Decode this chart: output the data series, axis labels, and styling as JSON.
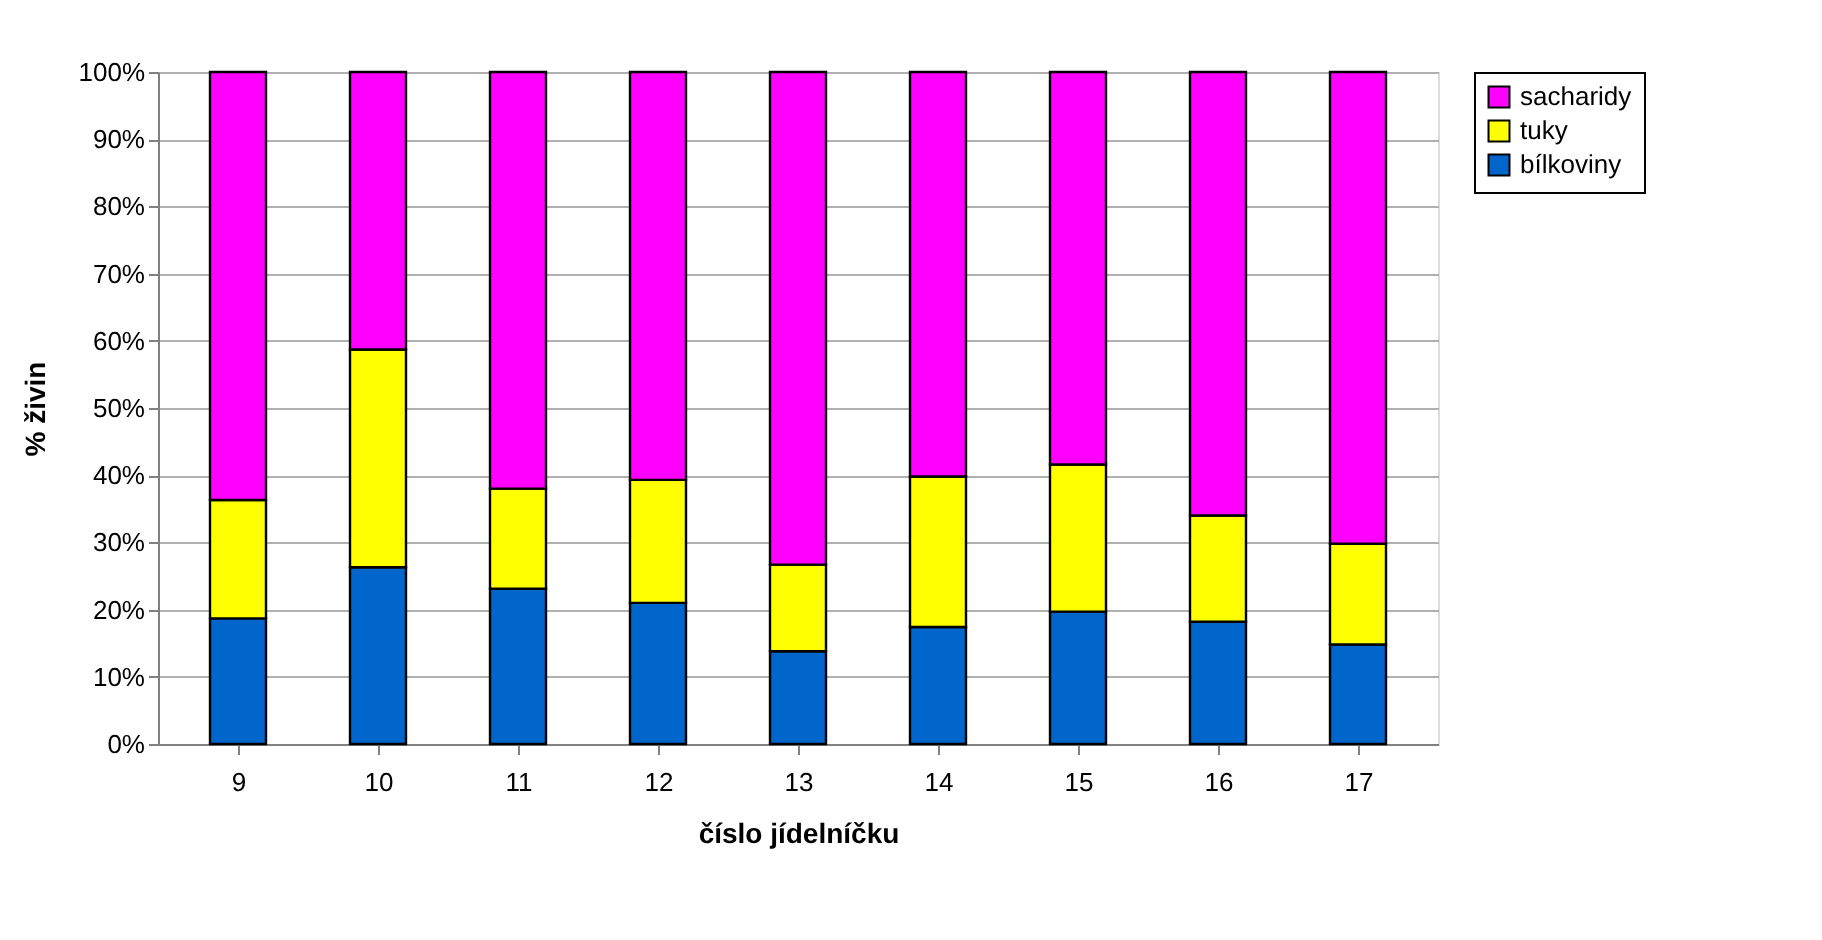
{
  "chart_data": {
    "type": "bar",
    "stacked": true,
    "xlabel": "číslo jídelníčku",
    "ylabel": "% živin",
    "categories": [
      "9",
      "10",
      "11",
      "12",
      "13",
      "14",
      "15",
      "16",
      "17"
    ],
    "series": [
      {
        "name": "bílkoviny",
        "color": "#0066cc",
        "values": [
          18.7,
          26.3,
          23.1,
          21.0,
          13.8,
          17.4,
          19.7,
          18.2,
          14.8
        ]
      },
      {
        "name": "tuky",
        "color": "#ffff00",
        "values": [
          17.6,
          32.4,
          14.9,
          18.3,
          12.9,
          22.4,
          21.9,
          15.8,
          15.0
        ]
      },
      {
        "name": "sacharidy",
        "color": "#ff00ff",
        "values": [
          63.7,
          41.3,
          62.0,
          60.7,
          73.3,
          60.2,
          58.4,
          66.0,
          70.2
        ]
      }
    ],
    "ylim": [
      0,
      100
    ],
    "yticks": [
      {
        "value": 0,
        "label": "0%"
      },
      {
        "value": 10,
        "label": "10%"
      },
      {
        "value": 20,
        "label": "20%"
      },
      {
        "value": 30,
        "label": "30%"
      },
      {
        "value": 40,
        "label": "40%"
      },
      {
        "value": 50,
        "label": "50%"
      },
      {
        "value": 60,
        "label": "60%"
      },
      {
        "value": 70,
        "label": "70%"
      },
      {
        "value": 80,
        "label": "80%"
      },
      {
        "value": 90,
        "label": "90%"
      },
      {
        "value": 100,
        "label": "100%"
      }
    ],
    "grid": "y",
    "legend": "right"
  }
}
